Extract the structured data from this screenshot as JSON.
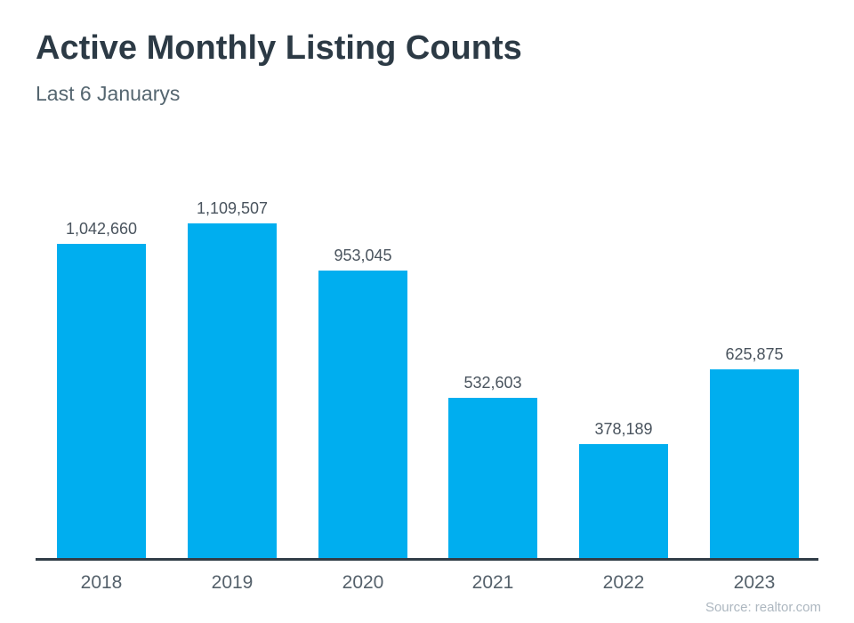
{
  "header": {
    "title": "Active Monthly Listing Counts",
    "subtitle": "Last 6 Januarys"
  },
  "footer": {
    "source": "Source: realtor.com"
  },
  "colors": {
    "bar": "#00aeef",
    "title": "#2c3a45",
    "subtitle": "#556670",
    "value_label": "#4a545e",
    "axis_label": "#55616b",
    "axis_line": "#313d47",
    "source": "#adb7c0",
    "background": "#ffffff"
  },
  "chart_data": {
    "type": "bar",
    "title": "Active Monthly Listing Counts",
    "subtitle": "Last 6 Januarys",
    "categories": [
      "2018",
      "2019",
      "2020",
      "2021",
      "2022",
      "2023"
    ],
    "values": [
      1042660,
      1109507,
      953045,
      532603,
      378189,
      625875
    ],
    "value_labels": [
      "1,042,660",
      "1,109,507",
      "953,045",
      "532,603",
      "378,189",
      "625,875"
    ],
    "xlabel": "",
    "ylabel": "",
    "ylim": [
      0,
      1109507
    ],
    "grid": false,
    "legend": false,
    "bar_color": "#00aeef",
    "source": "Source: realtor.com"
  }
}
